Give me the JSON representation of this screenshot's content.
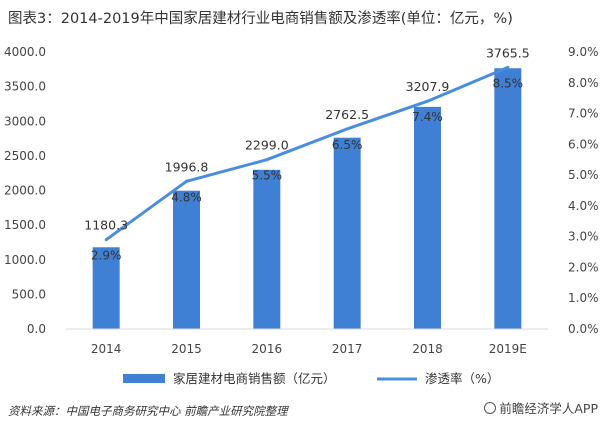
{
  "header": {
    "title": "图表3：2014-2019年中国家居建材行业电商销售额及渗透率(单位：亿元，%)"
  },
  "footer": {
    "source": "资料来源：中国电子商务研究中心 前瞻产业研究院整理",
    "brand": "前瞻经济学人APP"
  },
  "colors": {
    "bar": "#3f7fd4",
    "line": "#4a8de0",
    "axis_text": "#444444",
    "grid": "#d9d9d9"
  },
  "chart_data": {
    "type": "bar",
    "categories": [
      "2014",
      "2015",
      "2016",
      "2017",
      "2018",
      "2019E"
    ],
    "series": [
      {
        "name": "家居建材电商销售额（亿元）",
        "type": "bar",
        "axis": "left",
        "values": [
          1180.3,
          1996.8,
          2299.0,
          2762.5,
          3207.9,
          3765.5
        ],
        "labels": [
          "1180.3",
          "1996.8",
          "2299.0",
          "2762.5",
          "3207.9",
          "3765.5"
        ]
      },
      {
        "name": "渗透率（%）",
        "type": "line",
        "axis": "right",
        "values": [
          2.9,
          4.8,
          5.5,
          6.5,
          7.4,
          8.5
        ],
        "labels": [
          "2.9%",
          "4.8%",
          "5.5%",
          "6.5%",
          "7.4%",
          "8.5%"
        ]
      }
    ],
    "y_left": {
      "ylim": [
        0,
        4000
      ],
      "ticks": [
        "0.0",
        "500.0",
        "1000.0",
        "1500.0",
        "2000.0",
        "2500.0",
        "3000.0",
        "3500.0",
        "4000.0"
      ]
    },
    "y_right": {
      "ylim": [
        0,
        9
      ],
      "ticks": [
        "0.0%",
        "1.0%",
        "2.0%",
        "3.0%",
        "4.0%",
        "5.0%",
        "6.0%",
        "7.0%",
        "8.0%",
        "9.0%"
      ]
    },
    "legend_position": "bottom-center",
    "grid": false
  }
}
